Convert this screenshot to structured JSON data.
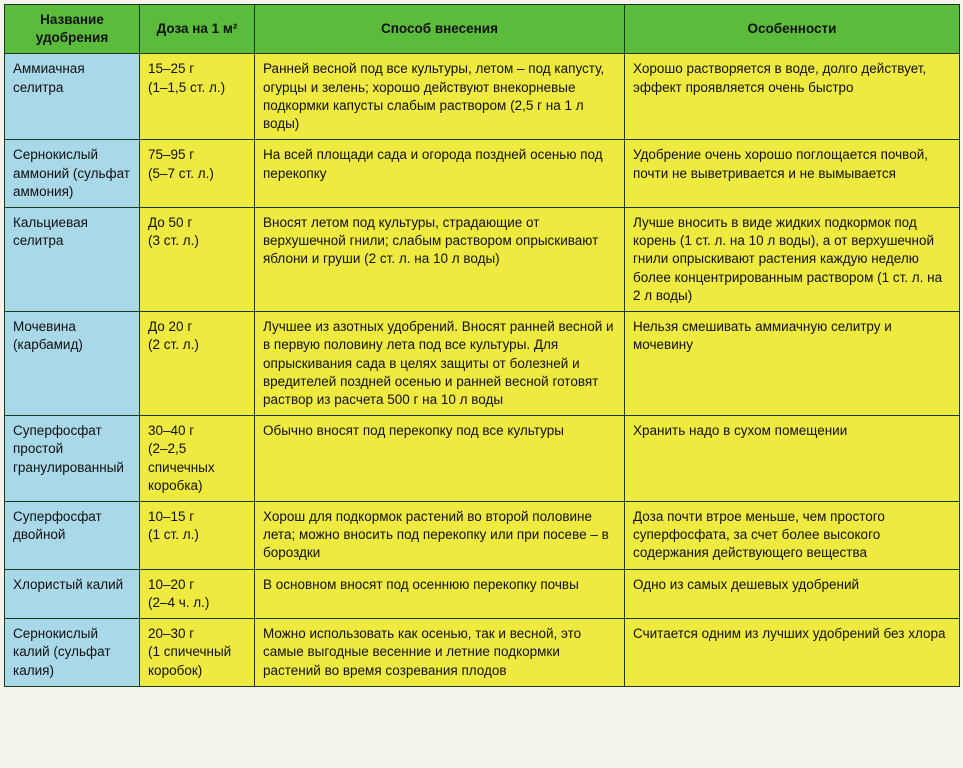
{
  "colors": {
    "header_bg": "#5bbb3a",
    "name_bg": "#a9d8e8",
    "cell_bg": "#eeea3f",
    "border": "#1a3a1a",
    "text": "#111111"
  },
  "columns": [
    "Название удобрения",
    "Доза на 1 м²",
    "Способ внесения",
    "Особенности"
  ],
  "rows": [
    {
      "name": "Аммиачная селитра",
      "dose": "15–25 г\n(1–1,5 ст. л.)",
      "method": "Ранней весной под все культуры, летом – под капусту, огурцы и зелень; хорошо действуют внекорневые подкормки капусты слабым раствором (2,5 г на 1 л воды)",
      "notes": "Хорошо растворяется в воде, долго действует, эффект проявляется очень быстро"
    },
    {
      "name": "Сернокислый аммоний (сульфат аммония)",
      "dose": "75–95 г\n(5–7 ст. л.)",
      "method": "На всей площади сада и огорода поздней осенью под перекопку",
      "notes": "Удобрение очень хорошо поглощается почвой, почти не выветривается и не вымывается"
    },
    {
      "name": "Кальциевая селитра",
      "dose": "До 50 г\n(3 ст. л.)",
      "method": "Вносят летом под культуры, страдающие от верхушечной гнили; слабым раствором опрыскивают яблони и груши (2 ст. л. на 10 л воды)",
      "notes": "Лучше вносить в виде жидких подкормок под корень (1 ст. л. на 10 л воды), а от верхушечной гнили опрыскивают растения каждую неделю более концентрированным раствором (1 ст. л. на 2 л воды)"
    },
    {
      "name": "Мочевина (карбамид)",
      "dose": "До 20 г\n(2 ст. л.)",
      "method": "Лучшее из азотных удобрений. Вносят ранней весной и в первую половину лета под все культуры. Для опрыскивания сада в целях защиты от болезней и вредителей поздней осенью и ранней весной готовят раствор из расчета 500 г на 10 л воды",
      "notes": "Нельзя смешивать аммиачную селитру и мочевину"
    },
    {
      "name": "Суперфосфат простой гранулированный",
      "dose": "30–40 г\n(2–2,5 спичечных коробка)",
      "method": "Обычно вносят под перекопку под все культуры",
      "notes": "Хранить надо в сухом помещении"
    },
    {
      "name": "Суперфосфат двойной",
      "dose": "10–15 г\n(1 ст. л.)",
      "method": "Хорош для подкормок растений во второй половине лета; можно вносить под перекопку или при посеве – в бороздки",
      "notes": "Доза почти втрое меньше, чем простого суперфосфата, за счет более высокого содержания действующего вещества"
    },
    {
      "name": "Хлористый калий",
      "dose": "10–20 г\n(2–4 ч. л.)",
      "method": "В основном вносят под осеннюю перекопку почвы",
      "notes": "Одно из самых дешевых удобрений"
    },
    {
      "name": "Сернокислый калий (сульфат калия)",
      "dose": "20–30 г\n(1 спичечный коробок)",
      "method": "Можно использовать как осенью, так и весной, это самые выгодные весенние и летние подкормки растений во время созревания плодов",
      "notes": "Считается одним из лучших удобрений без хлора"
    }
  ]
}
